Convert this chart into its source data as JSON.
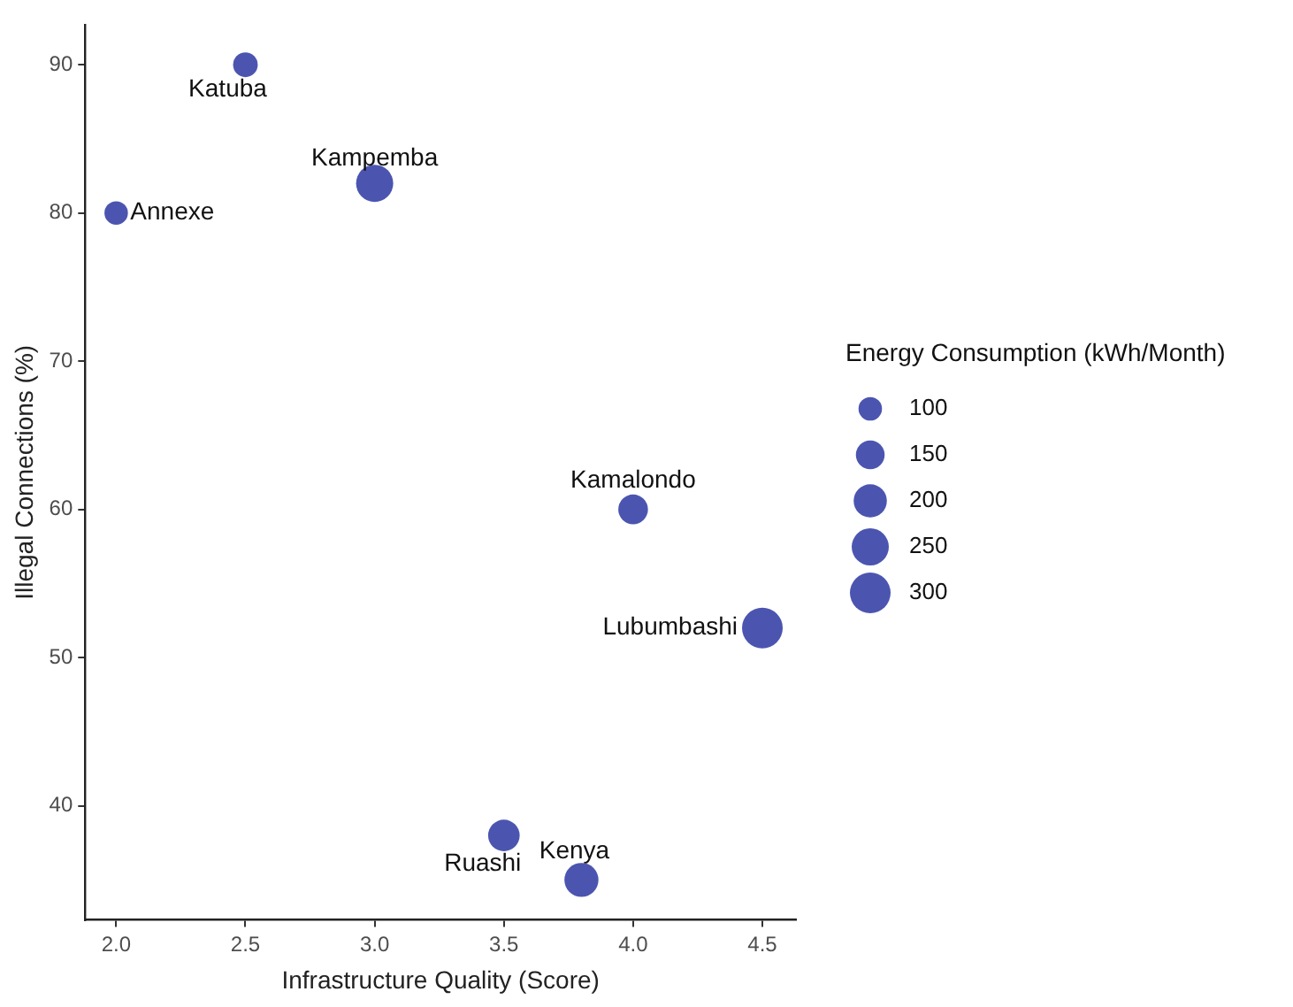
{
  "chart_data": {
    "type": "bubble",
    "xlabel": "Infrastructure Quality (Score)",
    "ylabel": "Illegal Connections (%)",
    "legend_title": "Energy Consumption (kWh/Month)",
    "x": [
      2.5,
      2.0,
      3.0,
      4.0,
      4.5,
      3.5,
      3.8
    ],
    "series": [
      {
        "color": "#4b55b0",
        "values": [
          90,
          80,
          82,
          60,
          52,
          38,
          35
        ],
        "sizes": [
          110,
          100,
          250,
          160,
          300,
          180,
          210
        ]
      }
    ],
    "size_legend": [
      100,
      150,
      200,
      250,
      300
    ],
    "xlim": [
      1.88,
      4.63
    ],
    "xticks": [
      {
        "value": 2,
        "label": "2.0"
      },
      {
        "value": 2.5,
        "label": "2.5"
      },
      {
        "value": 3,
        "label": "3.0"
      },
      {
        "value": 3.5,
        "label": "3.5"
      },
      {
        "value": 4,
        "label": "4.0"
      },
      {
        "value": 4.5,
        "label": "4.5"
      }
    ],
    "ylim": [
      32.3,
      92.7
    ],
    "yticks": [
      40,
      50,
      60,
      70,
      80,
      90
    ],
    "grid": false,
    "annotations": [
      {
        "text": "Katuba",
        "x": 2.5,
        "y": 90
      },
      {
        "text": "Annexe",
        "x": 2.0,
        "y": 80
      },
      {
        "text": "Kampemba",
        "x": 3.0,
        "y": 82
      },
      {
        "text": "Kamalondo",
        "x": 4.0,
        "y": 60
      },
      {
        "text": "Lubumbashi",
        "x": 4.5,
        "y": 52
      },
      {
        "text": "Ruashi",
        "x": 3.5,
        "y": 38
      },
      {
        "text": "Kenya",
        "x": 3.8,
        "y": 35
      }
    ]
  }
}
